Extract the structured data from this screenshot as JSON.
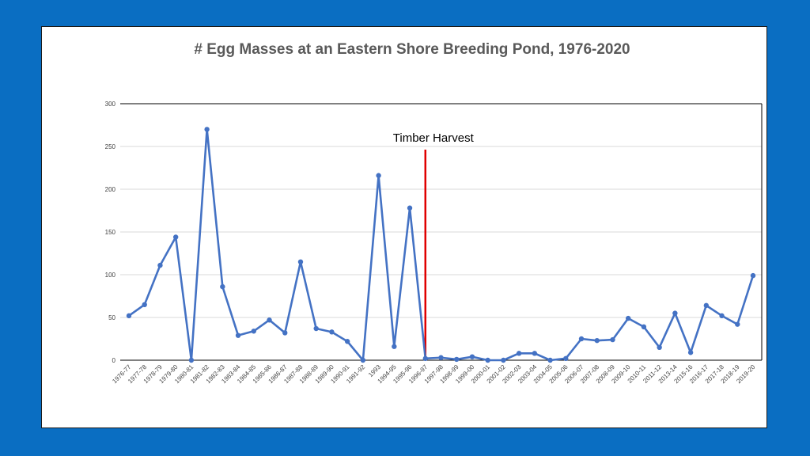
{
  "chart_data": {
    "type": "line",
    "title": "# Egg Masses at an Eastern Shore Breeding Pond, 1976-2020",
    "xlabel": "",
    "ylabel": "",
    "ylim": [
      0,
      300
    ],
    "yticks": [
      0,
      50,
      100,
      150,
      200,
      250,
      300
    ],
    "grid": true,
    "legend": "none",
    "categories": [
      "1976-77",
      "1977-78",
      "1978-79",
      "1979-80",
      "1980-81",
      "1981-82",
      "1982-83",
      "1983-84",
      "1984-85",
      "1985-86",
      "1986-87",
      "1987-88",
      "1988-89",
      "1989-90",
      "1990-91",
      "1991-92",
      "1993",
      "1994-95",
      "1995-96",
      "1996-97",
      "1997-98",
      "1998-99",
      "1999-00",
      "2000-01",
      "2001-02",
      "2002-03",
      "2003-04",
      "2004-05",
      "2005-06",
      "2006-07",
      "2007-08",
      "2008-09",
      "2009-10",
      "2010-11",
      "2011-12",
      "2013-14",
      "2015-16",
      "2016-17",
      "2017-18",
      "2018-19",
      "2019-20"
    ],
    "series": [
      {
        "values": [
          52,
          65,
          111,
          144,
          0,
          270,
          86,
          29,
          34,
          47,
          32,
          115,
          37,
          33,
          22,
          0,
          216,
          16,
          178,
          2,
          3,
          1,
          4,
          0,
          0,
          8,
          8,
          0,
          2,
          25,
          23,
          24,
          49,
          39,
          15,
          55,
          9,
          64,
          52,
          42,
          99
        ],
        "color": "#4472C4"
      }
    ],
    "annotations": [
      {
        "text": "Timber Harvest",
        "at_category": "1996-97",
        "color": "#E00000"
      }
    ]
  },
  "colors": {
    "background": "#0A6EC2",
    "series": "#4472C4",
    "marker_line": "#E00000",
    "grid": "#D9D9D9"
  }
}
